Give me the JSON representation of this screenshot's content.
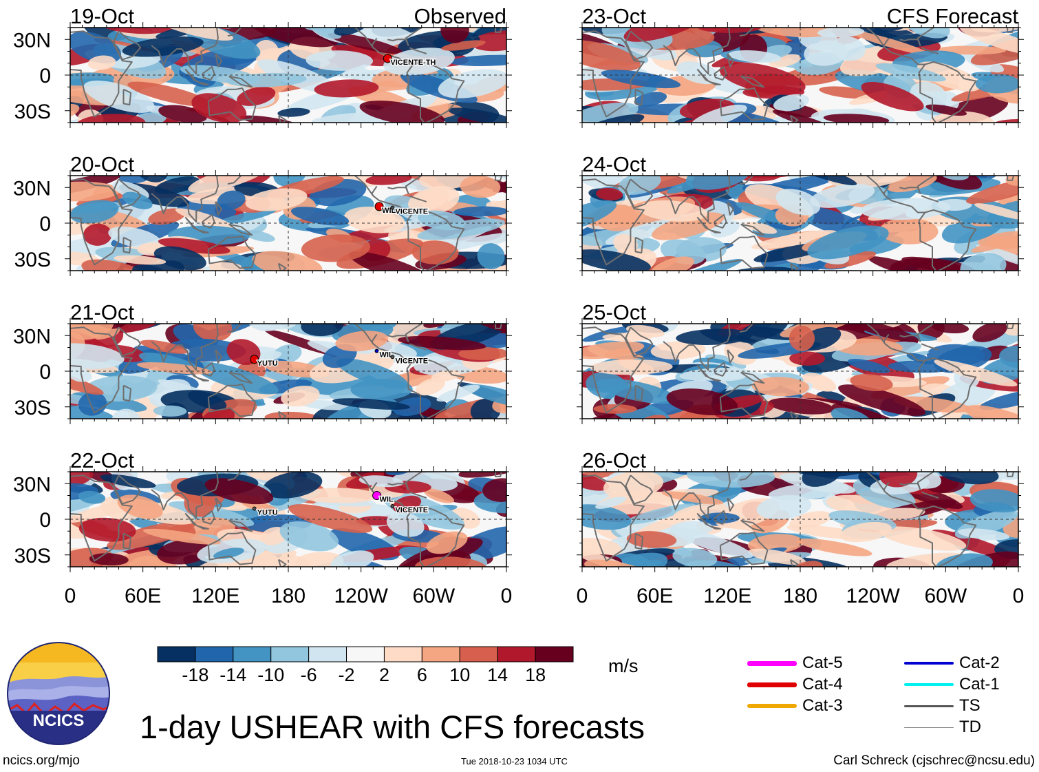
{
  "title": "1-day USHEAR with CFS forecasts",
  "footer": {
    "url": "ncics.org/mjo",
    "timestamp": "Tue 2018-10-23 1034 UTC",
    "author": "Carl Schreck (cjschrec@ncsu.edu)"
  },
  "logo": {
    "text": "NCICS"
  },
  "colors": {
    "land_outline": "#6e6e6e",
    "frame": "#000000",
    "cat5": "#ff00ff",
    "cat4": "#e00000",
    "cat3": "#f0a800",
    "cat2": "#0000d0",
    "cat1": "#00f0f0",
    "ts": "#555555",
    "td": "#888888"
  },
  "colorbar": {
    "units": "m/s",
    "ticks": [
      "-18",
      "-14",
      "-10",
      "-6",
      "-2",
      "2",
      "6",
      "10",
      "14",
      "18"
    ],
    "colors": [
      "#053061",
      "#2166ac",
      "#4393c3",
      "#92c5de",
      "#d1e5f0",
      "#f7f7f7",
      "#fddbc7",
      "#f4a582",
      "#d6604d",
      "#b2182b",
      "#67001f"
    ]
  },
  "legend": {
    "items": [
      {
        "label": "Cat-5",
        "color": "#ff00ff",
        "width": 7
      },
      {
        "label": "Cat-4",
        "color": "#e00000",
        "width": 7
      },
      {
        "label": "Cat-3",
        "color": "#f0a800",
        "width": 6
      },
      {
        "label": "Cat-2",
        "color": "#0000d0",
        "width": 4
      },
      {
        "label": "Cat-1",
        "color": "#00f0f0",
        "width": 4
      },
      {
        "label": "TS",
        "color": "#555555",
        "width": 3
      },
      {
        "label": "TD",
        "color": "#888888",
        "width": 1
      }
    ]
  },
  "chart_data": {
    "type": "heatmap",
    "variable": "USHEAR",
    "units": "m/s",
    "x_tick_labels": [
      "0",
      "60E",
      "120E",
      "180",
      "120W",
      "60W",
      "0"
    ],
    "x_tick_lons": [
      0,
      60,
      120,
      180,
      240,
      300,
      360
    ],
    "y_tick_labels": [
      "30N",
      "0",
      "30S"
    ],
    "y_tick_lats": [
      30,
      0,
      -30
    ],
    "xlim": [
      0,
      360
    ],
    "ylim": [
      -40,
      40
    ],
    "panels": [
      {
        "date": "19-Oct",
        "label": "Observed",
        "column": "left",
        "storms": [
          {
            "name": "VICENTE-TH",
            "lon": 262,
            "lat": 14,
            "category": "Cat-4"
          }
        ]
      },
      {
        "date": "20-Oct",
        "label": "",
        "column": "left",
        "storms": [
          {
            "name": "WIL",
            "lon": 255,
            "lat": 14,
            "category": "Cat-4"
          },
          {
            "name": "VICENTE",
            "lon": 266,
            "lat": 13,
            "category": "TS"
          }
        ]
      },
      {
        "date": "21-Oct",
        "label": "",
        "column": "left",
        "storms": [
          {
            "name": "YUTU",
            "lon": 152,
            "lat": 10,
            "category": "Cat-4"
          },
          {
            "name": "WIL",
            "lon": 253,
            "lat": 17,
            "category": "Cat-2"
          },
          {
            "name": "VICENTE",
            "lon": 266,
            "lat": 12,
            "category": "TS"
          }
        ]
      },
      {
        "date": "22-Oct",
        "label": "",
        "column": "left",
        "storms": [
          {
            "name": "YUTU",
            "lon": 152,
            "lat": 9,
            "category": "TS"
          },
          {
            "name": "WIL",
            "lon": 253,
            "lat": 20,
            "category": "Cat-5"
          },
          {
            "name": "VICENTE",
            "lon": 266,
            "lat": 11,
            "category": "TS"
          }
        ]
      },
      {
        "date": "23-Oct",
        "label": "CFS Forecast",
        "column": "right",
        "storms": []
      },
      {
        "date": "24-Oct",
        "label": "",
        "column": "right",
        "storms": []
      },
      {
        "date": "25-Oct",
        "label": "",
        "column": "right",
        "storms": []
      },
      {
        "date": "26-Oct",
        "label": "",
        "column": "right",
        "storms": []
      }
    ]
  }
}
